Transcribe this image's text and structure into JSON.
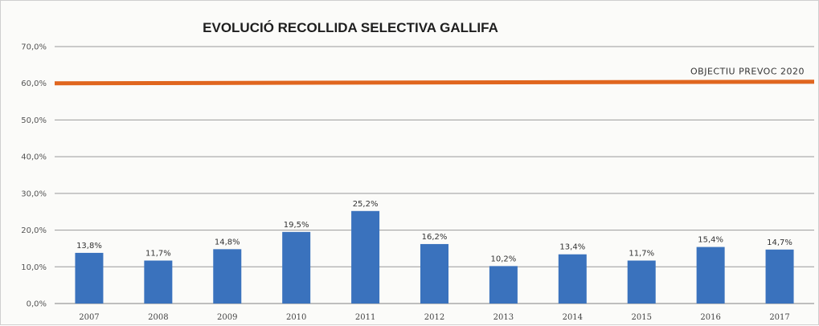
{
  "chart_data": {
    "type": "bar",
    "title": "EVOLUCIÓ RECOLLIDA SELECTIVA GALLIFA",
    "categories": [
      "2007",
      "2008",
      "2009",
      "2010",
      "2011",
      "2012",
      "2013",
      "2014",
      "2015",
      "2016",
      "2017"
    ],
    "values": [
      13.8,
      11.7,
      14.8,
      19.5,
      25.2,
      16.2,
      10.2,
      13.4,
      11.7,
      15.4,
      14.7
    ],
    "data_labels": [
      "13,8%",
      "11,7%",
      "14,8%",
      "19,5%",
      "25,2%",
      "16,2%",
      "10,2%",
      "13,4%",
      "11,7%",
      "15,4%",
      "14,7%"
    ],
    "ylim": [
      0,
      70
    ],
    "yticks": [
      "0,0%",
      "10,0%",
      "20,0%",
      "30,0%",
      "40,0%",
      "50,0%",
      "60,0%",
      "70,0%"
    ],
    "grid": true,
    "legend": "none",
    "target": {
      "label": "OBJECTIU PREVOC 2020",
      "value": 60
    },
    "colors": {
      "bar": "#3a72bd",
      "target": "#e0661f",
      "grid": "#9a9a9a"
    }
  }
}
